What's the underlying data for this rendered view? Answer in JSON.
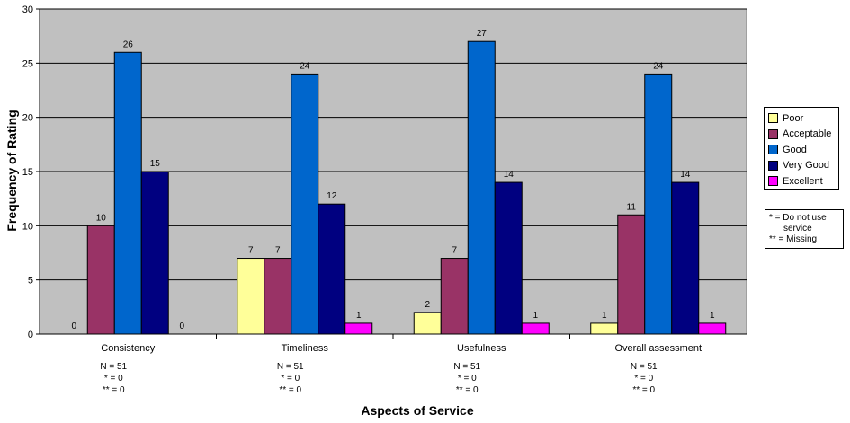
{
  "chart_data": {
    "type": "bar",
    "title": "",
    "xlabel": "Aspects of Service",
    "ylabel": "Frequency of Rating",
    "ylim": [
      0,
      30
    ],
    "yticks": [
      0,
      5,
      10,
      15,
      20,
      25,
      30
    ],
    "grid": true,
    "legend_position": "right",
    "categories": [
      "Consistency",
      "Timeliness",
      "Usefulness",
      "Overall assessment"
    ],
    "series": [
      {
        "name": "Poor",
        "color": "#FFFF99",
        "values": [
          0,
          7,
          2,
          1
        ]
      },
      {
        "name": "Acceptable",
        "color": "#993366",
        "values": [
          10,
          7,
          7,
          11
        ]
      },
      {
        "name": "Good",
        "color": "#0066CC",
        "values": [
          26,
          24,
          27,
          24
        ]
      },
      {
        "name": "Very Good",
        "color": "#000080",
        "values": [
          15,
          12,
          14,
          14
        ]
      },
      {
        "name": "Excellent",
        "color": "#FF00FF",
        "values": [
          0,
          1,
          1,
          1
        ]
      }
    ],
    "category_notes": [
      [
        "N = 51",
        "* = 0",
        "** = 0"
      ],
      [
        "N = 51",
        "* = 0",
        "** = 0"
      ],
      [
        "N = 51",
        "* = 0",
        "** = 0"
      ],
      [
        "N = 51",
        "* = 0",
        "** = 0"
      ]
    ],
    "plot_background": "#C0C0C0"
  },
  "footnote": {
    "line1": "* = Do not use",
    "line2": "service",
    "line3": "** = Missing"
  }
}
